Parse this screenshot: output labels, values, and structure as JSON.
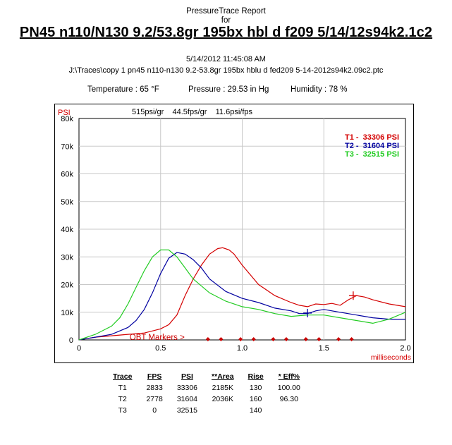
{
  "header": {
    "report_title": "PressureTrace Report",
    "for_label": "for",
    "load_title": "PN45 n110/N130 9.2/53.8gr 195bx hbl d f209 5/14/12s94k2.1c2",
    "date": "5/14/2012 11:45:08 AM",
    "file_path": "J:\\Traces\\copy 1 pn45 n110-n130 9.2-53.8gr 195bx hblu d fed209 5-14-2012s94k2.09c2.ptc"
  },
  "conditions": {
    "temperature": "Temperature : 65 °F",
    "pressure": "Pressure : 29.53 in Hg",
    "humidity": "Humidity : 78 %"
  },
  "colors": {
    "t1": "#d40000",
    "t2": "#0000a0",
    "t3": "#22cc22",
    "markers": "#cc0000",
    "grid": "#c8c8c8"
  },
  "chart_data": {
    "type": "line",
    "ylabel": "PSI",
    "xlabel": "milliseconds",
    "stats_line": "515psi/gr    44.5fps/gr    11.6psi/fps",
    "xlim": [
      0,
      2.0
    ],
    "ylim": [
      0,
      80000
    ],
    "x_ticks": [
      0,
      0.5,
      1.0,
      1.5,
      2.0
    ],
    "x_tick_labels": [
      "0",
      "0.5",
      "1.0",
      "1.5",
      "2.0"
    ],
    "y_ticks": [
      0,
      10000,
      20000,
      30000,
      40000,
      50000,
      60000,
      70000,
      80000
    ],
    "y_tick_labels": [
      "0",
      "10k",
      "20k",
      "30k",
      "40k",
      "50k",
      "60k",
      "70k",
      "80k"
    ],
    "grid": true,
    "legend_position": "top-right",
    "legend": [
      {
        "label": "T1 -  33306 PSI",
        "color": "#d40000"
      },
      {
        "label": "T2 -  31604 PSI",
        "color": "#0000a0"
      },
      {
        "label": "T3 -  32515 PSI",
        "color": "#22cc22"
      }
    ],
    "obt_label": "OBT Markers >",
    "obt_markers_x": [
      0.79,
      0.87,
      0.99,
      1.07,
      1.19,
      1.27,
      1.39,
      1.47,
      1.59,
      1.67
    ],
    "series": [
      {
        "name": "T1",
        "color": "#d40000",
        "x": [
          0,
          0.1,
          0.2,
          0.3,
          0.4,
          0.5,
          0.55,
          0.6,
          0.65,
          0.7,
          0.75,
          0.8,
          0.85,
          0.88,
          0.92,
          0.95,
          1.0,
          1.05,
          1.1,
          1.2,
          1.3,
          1.35,
          1.4,
          1.45,
          1.5,
          1.55,
          1.6,
          1.65,
          1.7,
          1.75,
          1.8,
          1.9,
          2.0
        ],
        "y": [
          0,
          1000,
          1500,
          2000,
          2500,
          4000,
          5500,
          9000,
          16000,
          22000,
          27000,
          31000,
          33000,
          33306,
          32500,
          31000,
          27000,
          23500,
          20000,
          16000,
          13500,
          12500,
          12000,
          13000,
          12800,
          13200,
          12500,
          14500,
          16000,
          15500,
          14500,
          13000,
          12000
        ]
      },
      {
        "name": "T2",
        "color": "#0000a0",
        "x": [
          0,
          0.1,
          0.2,
          0.3,
          0.35,
          0.4,
          0.45,
          0.5,
          0.55,
          0.6,
          0.65,
          0.7,
          0.75,
          0.8,
          0.9,
          1.0,
          1.1,
          1.2,
          1.3,
          1.35,
          1.4,
          1.45,
          1.5,
          1.6,
          1.7,
          1.8,
          1.9,
          2.0
        ],
        "y": [
          0,
          1000,
          2000,
          4500,
          7000,
          11000,
          17000,
          24000,
          29500,
          31604,
          31000,
          29000,
          26000,
          22000,
          17500,
          15000,
          13500,
          11500,
          10500,
          9500,
          9500,
          10500,
          11000,
          10000,
          9000,
          8000,
          7500,
          7500
        ]
      },
      {
        "name": "T3",
        "color": "#22cc22",
        "x": [
          0,
          0.1,
          0.2,
          0.25,
          0.3,
          0.35,
          0.4,
          0.45,
          0.5,
          0.55,
          0.6,
          0.65,
          0.7,
          0.8,
          0.9,
          1.0,
          1.1,
          1.2,
          1.3,
          1.4,
          1.5,
          1.6,
          1.7,
          1.8,
          1.9,
          2.0
        ],
        "y": [
          0,
          2000,
          5000,
          8000,
          13000,
          19000,
          25000,
          30000,
          32515,
          32500,
          30000,
          26000,
          22000,
          17000,
          14000,
          12000,
          11000,
          9500,
          8500,
          9000,
          9000,
          8000,
          7000,
          6000,
          7500,
          10000
        ]
      }
    ],
    "peak_markers": [
      {
        "series": "T1",
        "x": 1.68,
        "y": 16000,
        "color": "#d40000"
      },
      {
        "series": "T2",
        "x": 1.4,
        "y": 9700,
        "color": "#0000a0"
      }
    ]
  },
  "results_table": {
    "headers": [
      "Trace",
      "FPS",
      "PSI",
      "**Area",
      "Rise",
      "* Eff%"
    ],
    "rows": [
      [
        "T1",
        "2833",
        "33306",
        "2185K",
        "130",
        "100.00"
      ],
      [
        "T2",
        "2778",
        "31604",
        "2036K",
        "160",
        "96.30"
      ],
      [
        "T3",
        "0",
        "32515",
        "",
        "140",
        ""
      ]
    ]
  }
}
